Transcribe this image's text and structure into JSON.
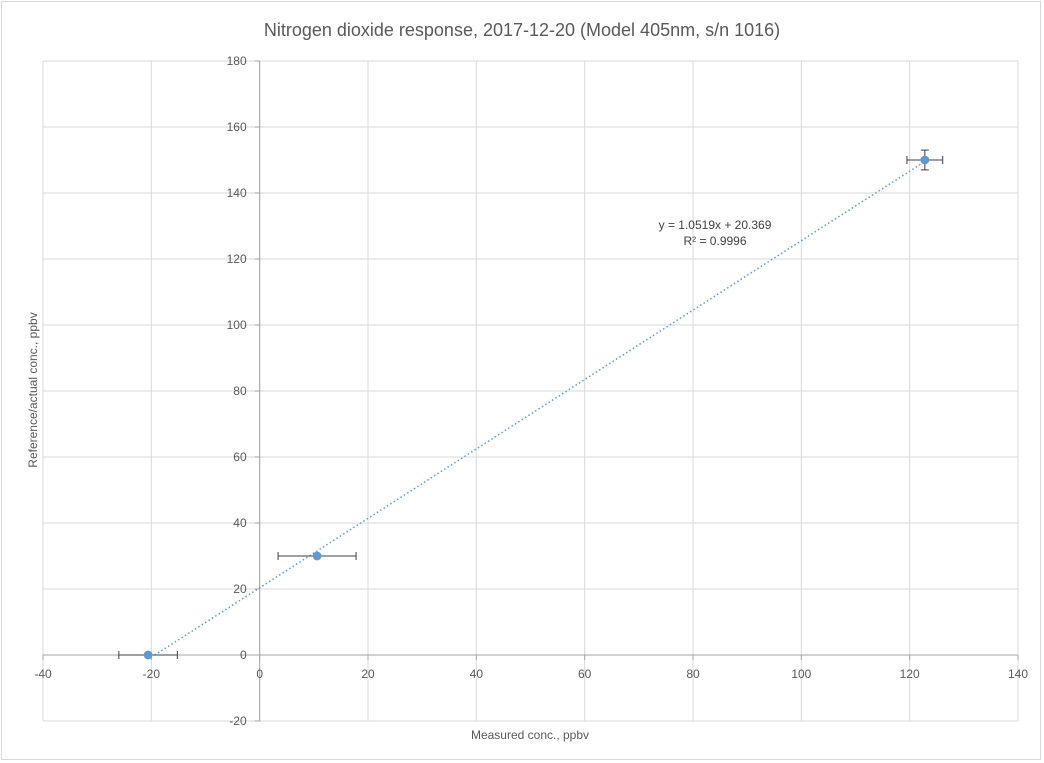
{
  "chart_data": {
    "type": "scatter",
    "title": "Nitrogen dioxide response, 2017-12-20 (Model 405nm, s/n 1016)",
    "xlabel": "Measured conc., ppbv",
    "ylabel": "Reference/actual conc., ppbv",
    "xlim": [
      -40,
      140
    ],
    "ylim": [
      -20,
      180
    ],
    "xticks": [
      -40,
      -20,
      0,
      20,
      40,
      60,
      80,
      100,
      120,
      140
    ],
    "yticks": [
      -20,
      0,
      20,
      40,
      60,
      80,
      100,
      120,
      140,
      160,
      180
    ],
    "grid": true,
    "legend": "none",
    "series": [
      {
        "points": [
          {
            "x": -20.6,
            "y": 0,
            "xerr": 5.4,
            "yerr": 0
          },
          {
            "x": 10.6,
            "y": 30,
            "xerr": 7.2,
            "yerr": 0
          },
          {
            "x": 122.8,
            "y": 150,
            "xerr": 3.3,
            "yerr": 3
          }
        ],
        "color": "#5b9bd5"
      }
    ],
    "trendline": {
      "type": "linear",
      "slope": 1.0519,
      "intercept": 20.369,
      "x_range": [
        -19.4,
        123.2
      ],
      "color": "#5b9bd5",
      "equation": "y = 1.0519x + 20.369",
      "r_squared": "R² = 0.9996"
    }
  }
}
